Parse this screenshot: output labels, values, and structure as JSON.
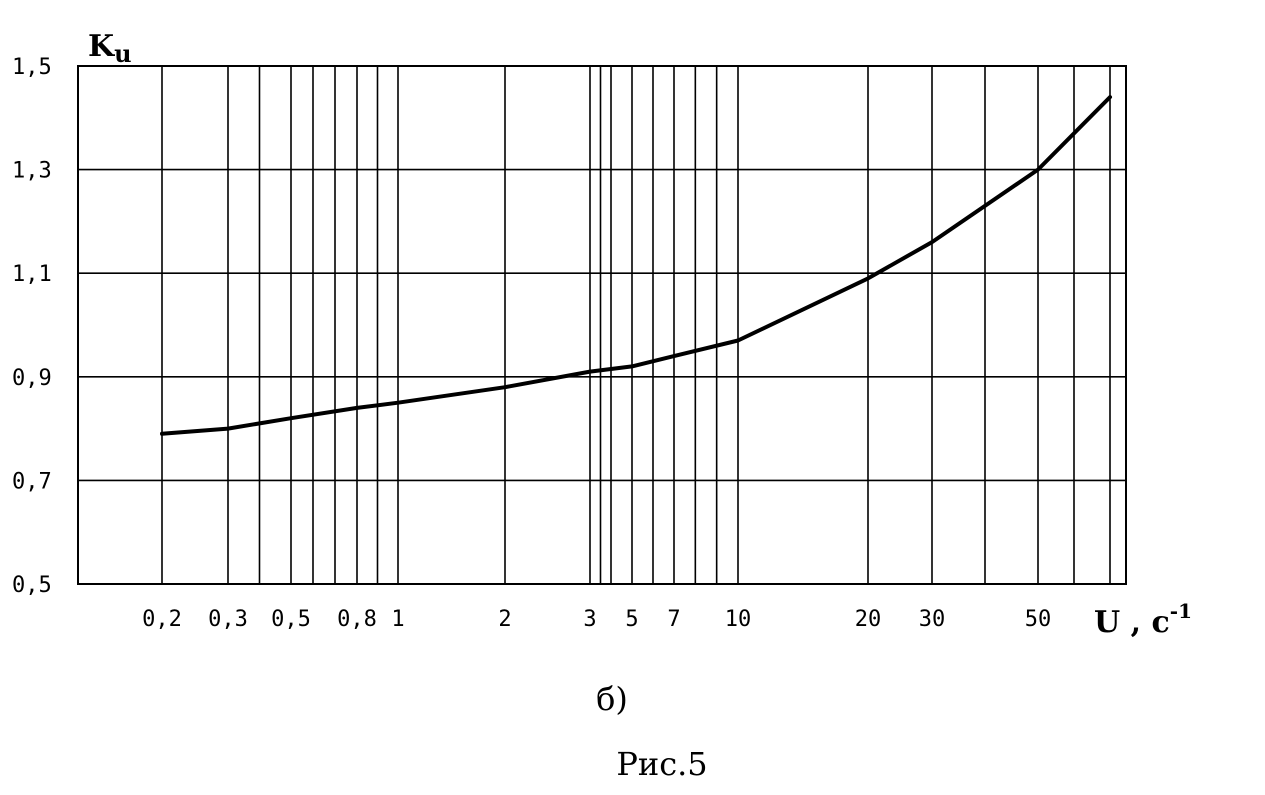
{
  "chart_data": {
    "type": "line",
    "title": "",
    "ylabel": {
      "main": "K",
      "sub": "u"
    },
    "xlabel": {
      "main": "U",
      "sep": " , ",
      "unit": "c",
      "exp": "-1"
    },
    "x_scale": "nonuniform",
    "y_ticks": [
      "1,5",
      "1,3",
      "1,1",
      "0,9",
      "0,7",
      "0,5"
    ],
    "y_tick_values": [
      1.5,
      1.3,
      1.1,
      0.9,
      0.7,
      0.5
    ],
    "ylim": [
      0.5,
      1.5
    ],
    "x_tick_values": [
      0.2,
      0.3,
      0.5,
      0.8,
      1,
      2,
      3,
      5,
      7,
      10,
      20,
      30,
      50
    ],
    "x_tick_labels": [
      "0,2",
      "0,3",
      "0,5",
      "0,8",
      "1",
      "2",
      "3",
      "5",
      "7",
      "10",
      "20",
      "30",
      "50"
    ],
    "grid": true,
    "series": [
      {
        "points": [
          [
            0.2,
            0.79
          ],
          [
            0.3,
            0.8
          ],
          [
            0.5,
            0.82
          ],
          [
            0.8,
            0.84
          ],
          [
            1,
            0.85
          ],
          [
            2,
            0.88
          ],
          [
            3,
            0.91
          ],
          [
            5,
            0.92
          ],
          [
            7,
            0.94
          ],
          [
            10,
            0.97
          ],
          [
            20,
            1.09
          ],
          [
            30,
            1.16
          ],
          [
            50,
            1.3
          ],
          [
            70,
            1.44
          ]
        ]
      }
    ]
  },
  "caption": {
    "sub": "б)",
    "figure": "Рис.5"
  },
  "colors": {
    "line": "#000000",
    "grid": "#000000",
    "background": "#ffffff"
  }
}
